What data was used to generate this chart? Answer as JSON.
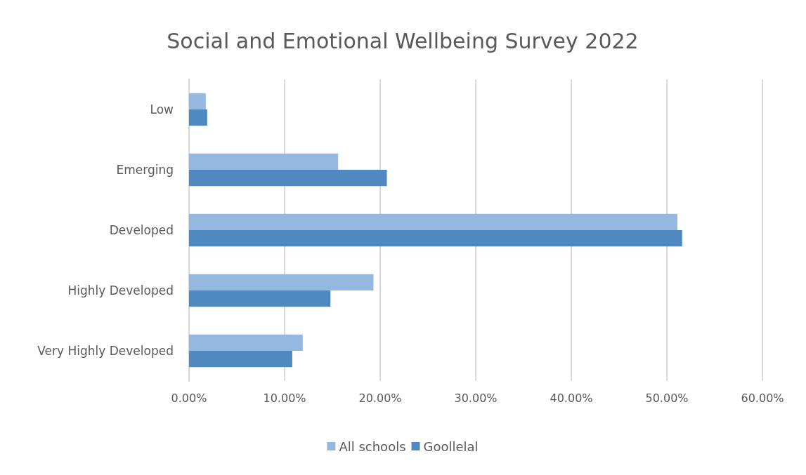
{
  "chart_data": {
    "type": "bar",
    "orientation": "horizontal",
    "title": "Social and Emotional Wellbeing Survey 2022",
    "categories": [
      "Low",
      "Emerging",
      "Developed",
      "Highly Developed",
      "Very Highly Developed"
    ],
    "series": [
      {
        "name": "All schools",
        "color": "#95b8e0",
        "values": [
          1.75,
          15.6,
          51.1,
          19.3,
          11.9
        ]
      },
      {
        "name": "Goollelal",
        "color": "#4f89bf",
        "values": [
          1.9,
          20.7,
          51.6,
          14.8,
          10.8
        ]
      }
    ],
    "xlim": [
      0,
      60
    ],
    "xticks": [
      {
        "value": 0,
        "label": "0.00%"
      },
      {
        "value": 10,
        "label": "10.00%"
      },
      {
        "value": 20,
        "label": "20.00%"
      },
      {
        "value": 30,
        "label": "30.00%"
      },
      {
        "value": 40,
        "label": "40.00%"
      },
      {
        "value": 50,
        "label": "50.00%"
      },
      {
        "value": 60,
        "label": "60.00%"
      }
    ],
    "grid": "x",
    "legend": "bottom"
  }
}
